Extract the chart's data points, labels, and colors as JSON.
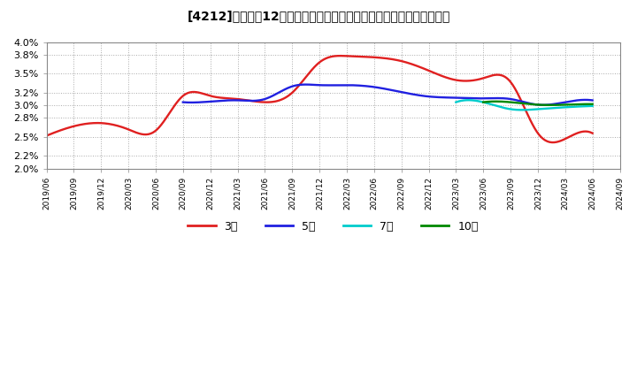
{
  "title_bracket": "[4212]",
  "title_text": "売上高12か月移動合計の対前年同期増減率の標準偏差の推移",
  "ylim": [
    0.02,
    0.04
  ],
  "yticks": [
    0.02,
    0.022,
    0.025,
    0.028,
    0.03,
    0.032,
    0.035,
    0.038,
    0.04
  ],
  "ytick_labels": [
    "2.0%",
    "2.2%",
    "2.5%",
    "2.8%",
    "3.0%",
    "3.2%",
    "3.5%",
    "3.8%",
    "4.0%"
  ],
  "colors": {
    "3y": "#e02020",
    "5y": "#2020e0",
    "7y": "#00cccc",
    "10y": "#008800"
  },
  "legend": [
    "3年",
    "5年",
    "7年",
    "10年"
  ],
  "background": "#ffffff",
  "plot_bg": "#ffffff",
  "grid_color": "#aaaaaa",
  "dates_3y": [
    "2019/06",
    "2019/09",
    "2019/12",
    "2020/03",
    "2020/06",
    "2020/09",
    "2020/12",
    "2021/03",
    "2021/06",
    "2021/09",
    "2021/12",
    "2022/03",
    "2022/06",
    "2022/09",
    "2022/12",
    "2023/03",
    "2023/06",
    "2023/09",
    "2023/12",
    "2024/03",
    "2024/06"
  ],
  "values_3y": [
    0.0252,
    0.0267,
    0.0272,
    0.0262,
    0.026,
    0.0315,
    0.0315,
    0.031,
    0.0305,
    0.032,
    0.0368,
    0.0378,
    0.0376,
    0.037,
    0.0355,
    0.034,
    0.0343,
    0.0337,
    0.0256,
    0.0247,
    0.0256
  ],
  "dates_5y": [
    "2020/09",
    "2020/12",
    "2021/03",
    "2021/06",
    "2021/09",
    "2021/12",
    "2022/03",
    "2022/06",
    "2022/09",
    "2022/12",
    "2023/03",
    "2023/06",
    "2023/09",
    "2023/12",
    "2024/03",
    "2024/06"
  ],
  "values_5y": [
    0.0305,
    0.0306,
    0.0308,
    0.031,
    0.033,
    0.0332,
    0.0332,
    0.0329,
    0.0321,
    0.0314,
    0.0312,
    0.0311,
    0.031,
    0.0301,
    0.0305,
    0.0308
  ],
  "dates_7y": [
    "2023/03",
    "2023/06",
    "2023/09",
    "2023/12",
    "2024/03",
    "2024/06"
  ],
  "values_7y": [
    0.0305,
    0.0305,
    0.0294,
    0.0294,
    0.0297,
    0.0299
  ],
  "dates_10y": [
    "2023/06",
    "2023/09",
    "2023/12",
    "2024/03",
    "2024/06"
  ],
  "values_10y": [
    0.0305,
    0.0305,
    0.0301,
    0.0301,
    0.0302
  ],
  "xtick_labels": [
    "2019/06",
    "2019/09",
    "2019/12",
    "2020/03",
    "2020/06",
    "2020/09",
    "2020/12",
    "2021/03",
    "2021/06",
    "2021/09",
    "2021/12",
    "2022/03",
    "2022/06",
    "2022/09",
    "2022/12",
    "2023/03",
    "2023/06",
    "2023/09",
    "2023/12",
    "2024/03",
    "2024/06",
    "2024/09"
  ]
}
